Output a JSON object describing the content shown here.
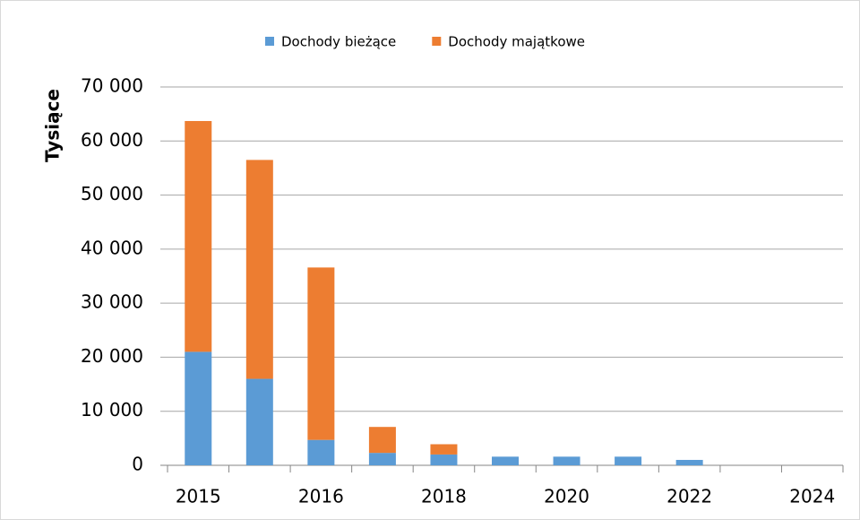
{
  "chart_data": {
    "type": "stacked_bar",
    "y_label": "Tysiące",
    "categories": [
      "2015",
      null,
      "2016",
      null,
      "2018",
      null,
      "2020",
      null,
      "2022",
      null,
      "2024"
    ],
    "series": [
      {
        "name": "Dochody bieżące",
        "color": "#5b9bd5",
        "values": [
          21000,
          16000,
          4700,
          2300,
          2000,
          1600,
          1600,
          1600,
          1000,
          0,
          0
        ]
      },
      {
        "name": "Dochody majątkowe",
        "color": "#ed7d31",
        "values": [
          42700,
          40500,
          31900,
          4800,
          1900,
          0,
          0,
          0,
          0,
          0,
          0
        ]
      }
    ],
    "ylim": [
      0,
      70000
    ],
    "yticks": [
      0,
      {
        "value": 10000,
        "label": "10 000"
      },
      {
        "value": 20000,
        "label": "20 000"
      },
      {
        "value": 30000,
        "label": "30 000"
      },
      {
        "value": 40000,
        "label": "40 000"
      },
      {
        "value": 50000,
        "label": "50 000"
      },
      {
        "value": 60000,
        "label": "60 000"
      },
      {
        "value": 70000,
        "label": "70 000"
      }
    ],
    "grid": true,
    "legend": "top"
  }
}
